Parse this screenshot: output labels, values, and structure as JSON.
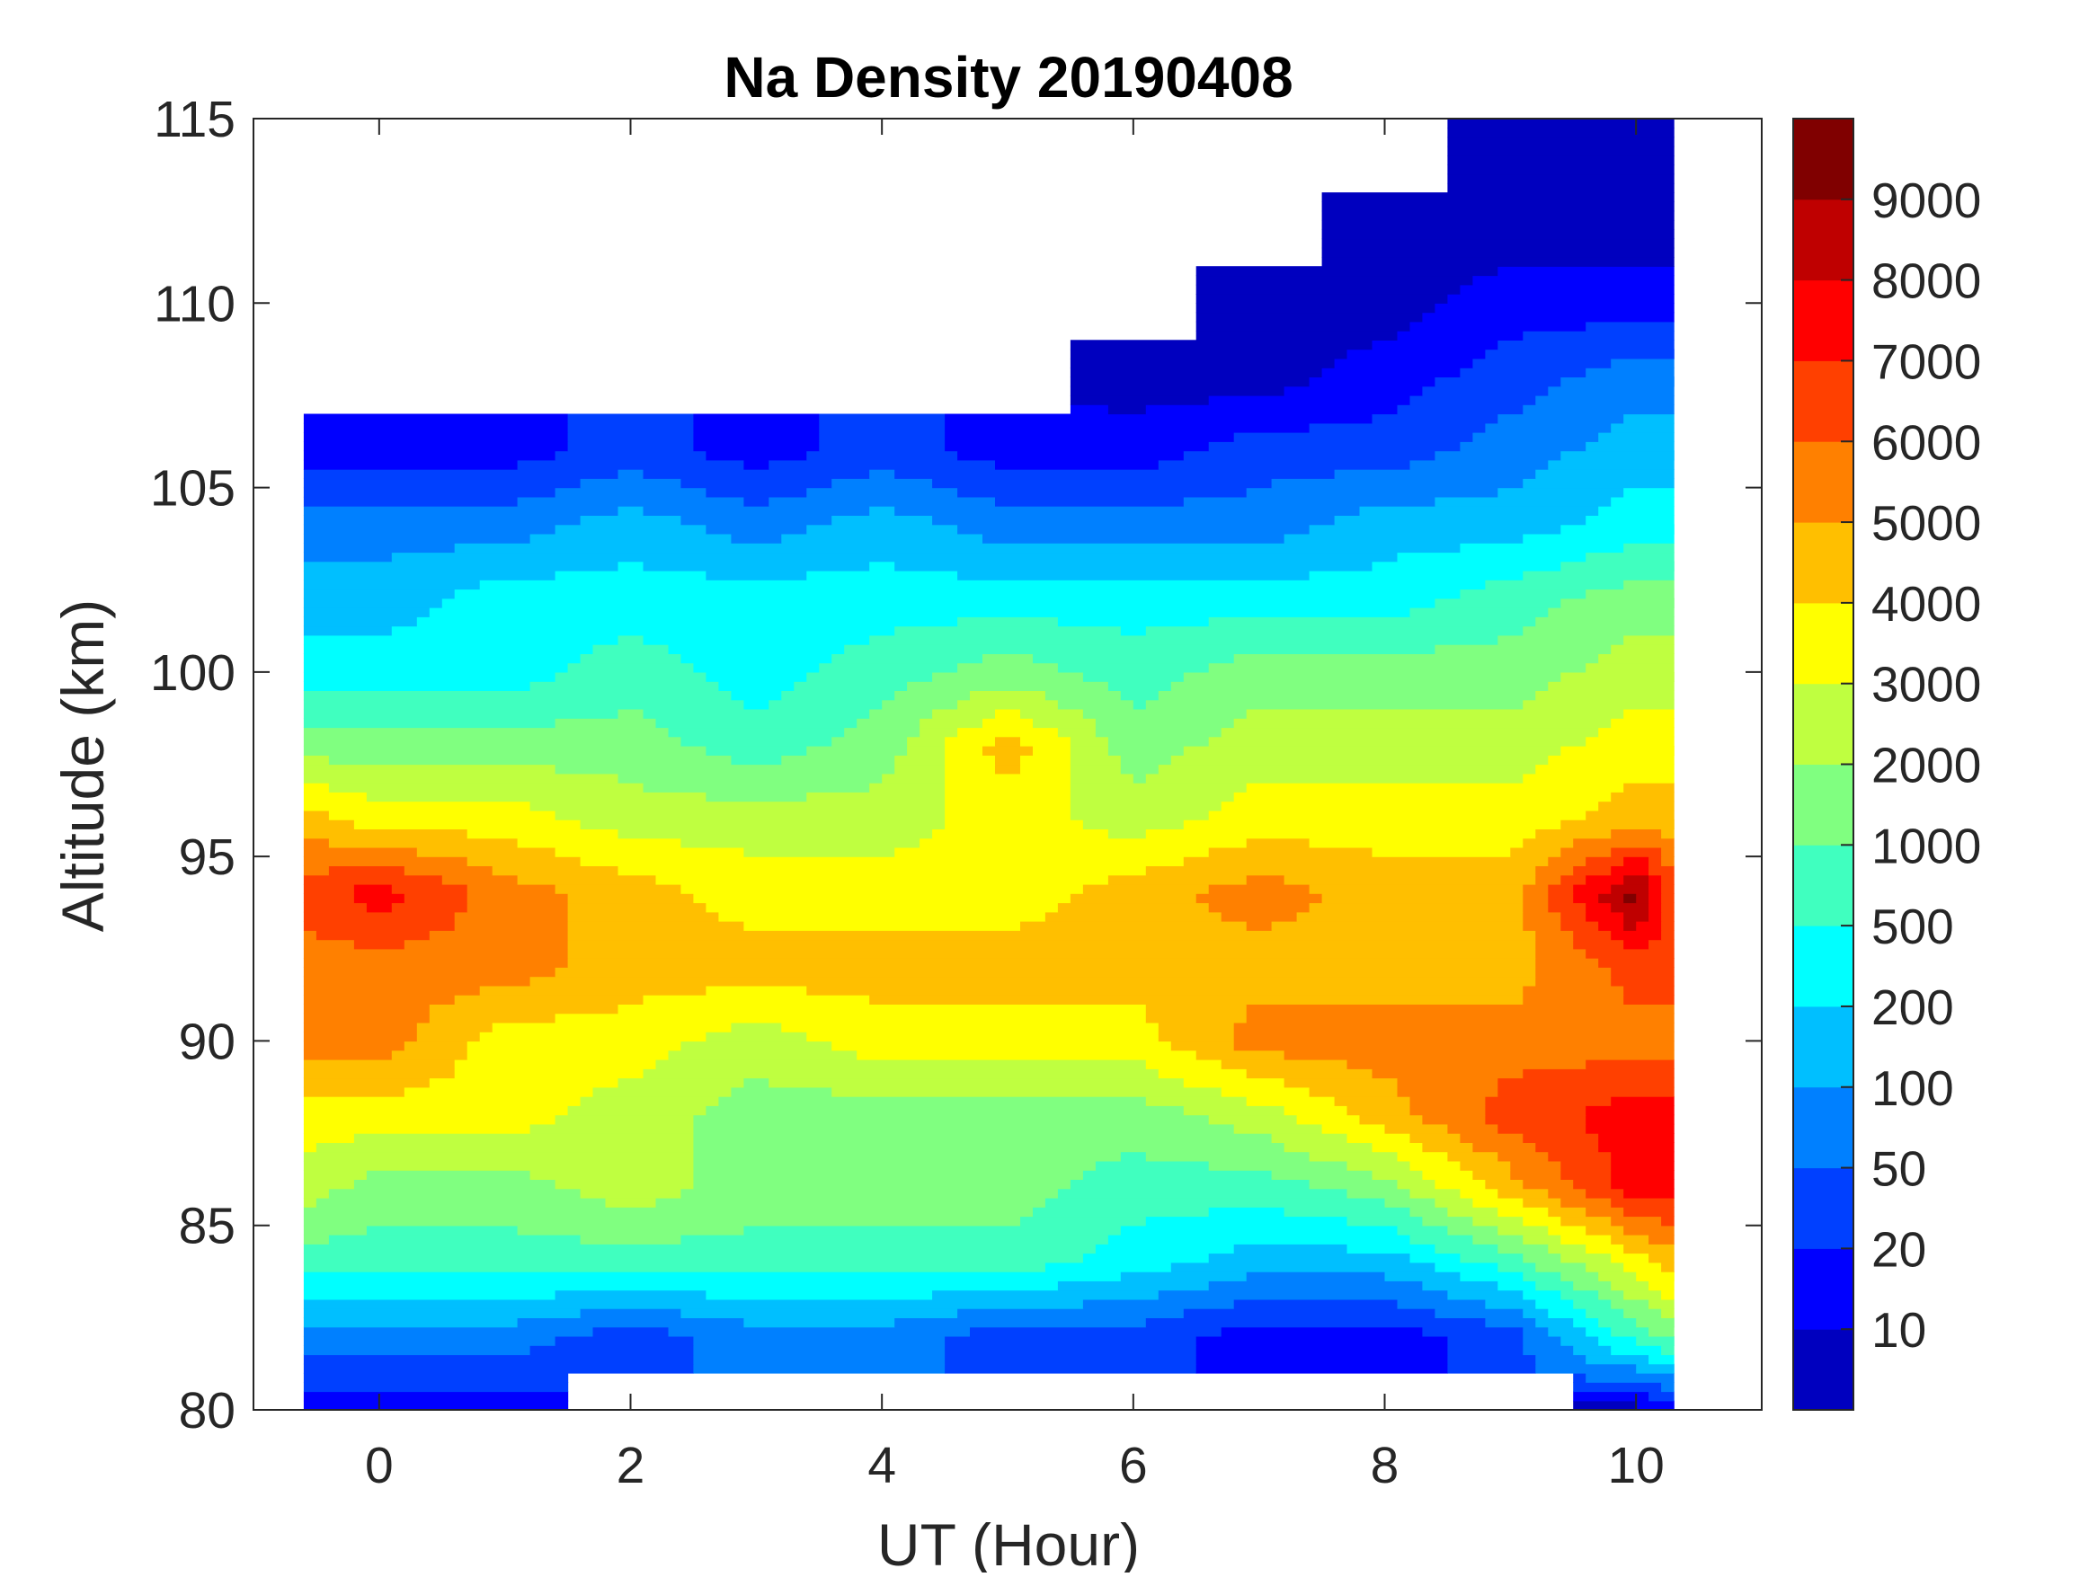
{
  "chart_data": {
    "type": "heatmap",
    "subtype": "filled-contour",
    "title": "Na Density 20190408",
    "xlabel": "UT (Hour)",
    "ylabel": "Altitude (km)",
    "xlim": [
      -1,
      11
    ],
    "ylim": [
      80,
      115
    ],
    "xticks": [
      0,
      2,
      4,
      6,
      8,
      10
    ],
    "yticks": [
      80,
      85,
      90,
      95,
      100,
      105,
      110,
      115
    ],
    "grid": false,
    "colorbar": {
      "placement": "right",
      "levels": [
        0,
        10,
        20,
        50,
        100,
        200,
        500,
        1000,
        2000,
        3000,
        4000,
        5000,
        6000,
        7000,
        8000,
        9000,
        10000
      ],
      "tick_labels": [
        "10",
        "20",
        "50",
        "100",
        "200",
        "500",
        "1000",
        "2000",
        "3000",
        "4000",
        "5000",
        "6000",
        "7000",
        "8000",
        "9000"
      ],
      "colors": [
        "#0000BF",
        "#0000FF",
        "#0040FF",
        "#0080FF",
        "#00BFFF",
        "#00FFFF",
        "#40FFBF",
        "#80FF80",
        "#BFFF40",
        "#FFFF00",
        "#FFBF00",
        "#FF8000",
        "#FF4000",
        "#FF0000",
        "#BF0000",
        "#800000"
      ]
    },
    "x": [
      -0.6,
      0,
      1,
      2,
      3,
      4,
      5,
      6,
      7,
      8,
      9,
      10,
      10.3
    ],
    "y": [
      80,
      82,
      84,
      86,
      88,
      90,
      92,
      94,
      96,
      98,
      100,
      102,
      104,
      106,
      108,
      110,
      112,
      114
    ],
    "z_by_x": [
      [
        15,
        75,
        750,
        2500,
        3500,
        5500,
        5500,
        6500,
        4500,
        1500,
        350,
        150,
        75,
        15,
        null,
        null,
        null,
        null
      ],
      [
        15,
        75,
        750,
        1500,
        3500,
        5500,
        5500,
        7500,
        3500,
        1500,
        350,
        150,
        75,
        15,
        null,
        null,
        null,
        null
      ],
      [
        15,
        75,
        750,
        1500,
        3500,
        3500,
        5500,
        5500,
        3500,
        1500,
        350,
        350,
        75,
        15,
        null,
        null,
        null,
        null
      ],
      [
        null,
        35,
        750,
        2500,
        2500,
        3500,
        4500,
        4500,
        2500,
        1500,
        750,
        350,
        150,
        35,
        null,
        null,
        null,
        null
      ],
      [
        null,
        75,
        750,
        1500,
        1500,
        2500,
        4500,
        3500,
        2500,
        750,
        350,
        350,
        75,
        15,
        null,
        null,
        null,
        null
      ],
      [
        null,
        75,
        750,
        1500,
        1500,
        3500,
        4500,
        3500,
        2500,
        1500,
        750,
        350,
        150,
        35,
        null,
        null,
        null,
        null
      ],
      [
        null,
        35,
        750,
        1500,
        1500,
        3500,
        4500,
        3500,
        3500,
        4500,
        1500,
        350,
        75,
        15,
        null,
        null,
        null,
        null
      ],
      [
        null,
        35,
        350,
        750,
        1500,
        3500,
        4500,
        4500,
        2500,
        1500,
        750,
        350,
        75,
        15,
        5,
        null,
        null,
        null
      ],
      [
        null,
        15,
        150,
        750,
        2500,
        5500,
        4500,
        5500,
        3500,
        2500,
        1500,
        350,
        75,
        35,
        5,
        5,
        null,
        null
      ],
      [
        null,
        15,
        150,
        1500,
        4500,
        5500,
        4500,
        4500,
        3500,
        2500,
        1500,
        350,
        150,
        35,
        15,
        5,
        5,
        null
      ],
      [
        null,
        35,
        750,
        4500,
        6500,
        5500,
        4500,
        4500,
        3500,
        2500,
        1500,
        750,
        150,
        75,
        35,
        15,
        5,
        5
      ],
      [
        5,
        750,
        3500,
        7500,
        7500,
        5500,
        6500,
        9500,
        4500,
        3500,
        2500,
        1500,
        350,
        150,
        75,
        15,
        5,
        5
      ],
      [
        15,
        1500,
        4500,
        7500,
        7500,
        5500,
        6500,
        6500,
        4500,
        3500,
        2500,
        1500,
        350,
        150,
        75,
        15,
        5,
        5
      ]
    ]
  }
}
